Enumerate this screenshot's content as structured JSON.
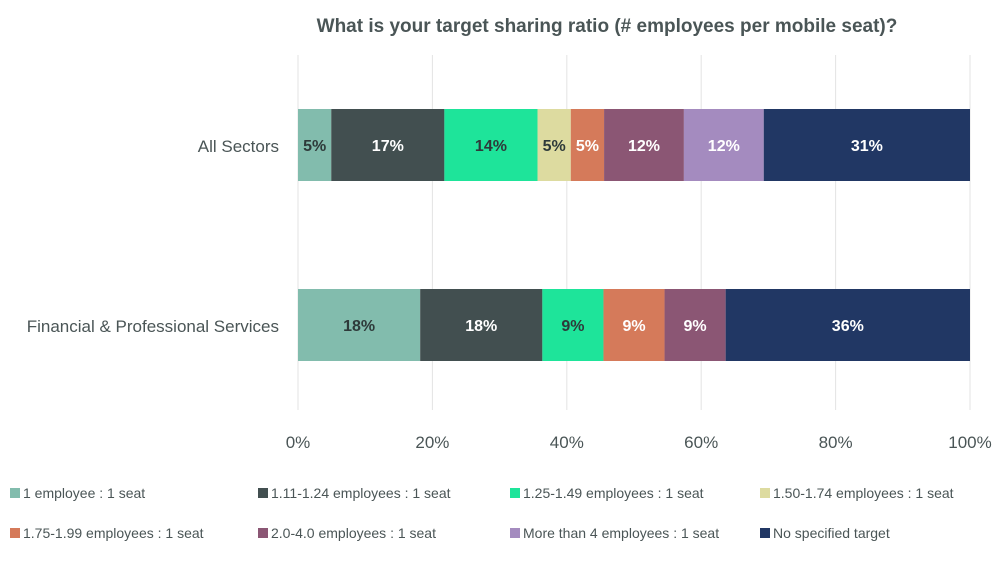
{
  "chart_data": {
    "type": "bar",
    "orientation": "horizontal",
    "stacked": true,
    "title": "What is your target sharing ratio (# employees per mobile seat)?",
    "categories": [
      "All Sectors",
      "Financial & Professional Services"
    ],
    "series": [
      {
        "name": "1 employee : 1 seat",
        "values": [
          5,
          18
        ],
        "labels": [
          "5%",
          "18%"
        ],
        "color": "#82bcad"
      },
      {
        "name": "1.11-1.24 employees : 1 seat",
        "values": [
          17,
          18
        ],
        "labels": [
          "17%",
          "18%"
        ],
        "color": "#424f50"
      },
      {
        "name": "1.25-1.49 employees : 1 seat",
        "values": [
          14,
          9
        ],
        "labels": [
          "14%",
          "9%"
        ],
        "color": "#1ee49a"
      },
      {
        "name": "1.50-1.74 employees : 1 seat",
        "values": [
          5,
          0
        ],
        "labels": [
          "5%",
          ""
        ],
        "color": "#dddba0"
      },
      {
        "name": "1.75-1.99 employees : 1 seat",
        "values": [
          5,
          9
        ],
        "labels": [
          "5%",
          "9%"
        ],
        "color": "#d57a5a"
      },
      {
        "name": "2.0-4.0 employees : 1 seat",
        "values": [
          12,
          9
        ],
        "labels": [
          "12%",
          "9%"
        ],
        "color": "#8b5674"
      },
      {
        "name": "More than 4 employees : 1 seat",
        "values": [
          12,
          0
        ],
        "labels": [
          "12%",
          ""
        ],
        "color": "#a48bbf"
      },
      {
        "name": "No specified target",
        "values": [
          31,
          36
        ],
        "labels": [
          "31%",
          "36%"
        ],
        "color": "#213764"
      }
    ],
    "x_ticks": [
      "0%",
      "20%",
      "40%",
      "60%",
      "80%",
      "100%"
    ],
    "xlim": [
      0,
      100
    ],
    "xlabel": "",
    "ylabel": "",
    "grid": true,
    "legend_position": "bottom"
  }
}
